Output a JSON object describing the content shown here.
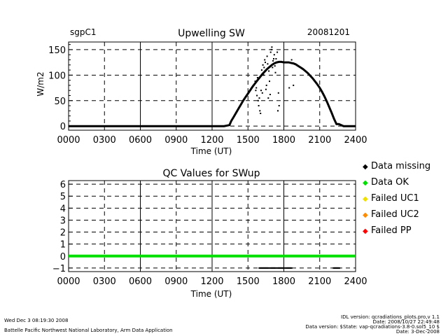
{
  "chart_data": [
    {
      "type": "scatter",
      "title": "Upwelling SW",
      "site_label": "sgpC1",
      "date_label": "20081201",
      "xlabel": "Time (UT)",
      "ylabel": "W/m2",
      "xlim": [
        0,
        2400
      ],
      "ylim": [
        -8,
        165
      ],
      "x_ticks": [
        "0000",
        "0300",
        "0600",
        "0900",
        "1200",
        "1500",
        "1800",
        "2100",
        "2400"
      ],
      "y_ticks": [
        "0",
        "50",
        "100",
        "150"
      ],
      "grid": true,
      "series": [
        {
          "x": [
            0,
            200,
            400,
            600,
            800,
            1000,
            1200,
            1300,
            1345,
            1360,
            1380,
            1400,
            1420,
            1440,
            1460,
            1480,
            1500,
            1520,
            1540,
            1560,
            1580,
            1600,
            1620,
            1640,
            1660,
            1680,
            1700,
            1720,
            1740,
            1760,
            1780,
            1800,
            1820,
            1840,
            1860,
            1880,
            1900,
            1920,
            1940,
            1960,
            1980,
            2000,
            2020,
            2040,
            2060,
            2080,
            2100,
            2120,
            2140,
            2160,
            2180,
            2200,
            2220,
            2240,
            2260,
            2280,
            2300,
            2320,
            2340,
            2360,
            2380,
            2400
          ],
          "y": [
            0,
            0,
            0,
            0,
            0,
            0,
            0,
            0,
            2,
            10,
            18,
            26,
            34,
            42,
            50,
            57,
            64,
            71,
            78,
            84,
            90,
            96,
            102,
            107,
            112,
            116,
            120,
            123,
            125,
            126,
            126,
            125,
            125,
            125,
            124,
            123,
            121,
            118,
            115,
            112,
            108,
            104,
            99,
            94,
            88,
            82,
            75,
            67,
            58,
            48,
            37,
            26,
            14,
            4,
            4,
            2,
            0,
            0,
            0,
            0,
            0,
            0
          ]
        },
        {
          "name": "scatter",
          "x": [
            1560,
            1565,
            1570,
            1575,
            1580,
            1585,
            1590,
            1595,
            1600,
            1605,
            1610,
            1615,
            1620,
            1625,
            1630,
            1635,
            1640,
            1645,
            1650,
            1655,
            1660,
            1665,
            1670,
            1675,
            1680,
            1685,
            1690,
            1695,
            1700,
            1705,
            1710,
            1715,
            1720,
            1725,
            1730,
            1735,
            1740,
            1745,
            1750,
            1755,
            1760,
            1845,
            1865,
            1880
          ],
          "y": [
            88,
            70,
            75,
            60,
            95,
            50,
            40,
            55,
            30,
            25,
            70,
            110,
            65,
            120,
            100,
            115,
            130,
            125,
            72,
            80,
            137,
            122,
            55,
            108,
            88,
            62,
            145,
            150,
            155,
            115,
            128,
            132,
            140,
            118,
            105,
            132,
            125,
            145,
            30,
            65,
            40,
            75,
            130,
            80
          ]
        }
      ]
    },
    {
      "type": "line",
      "title": "QC Values for SWup",
      "xlabel": "Time (UT)",
      "xlim": [
        0,
        2400
      ],
      "ylim": [
        -1.3,
        6.3
      ],
      "x_ticks": [
        "0000",
        "0300",
        "0600",
        "0900",
        "1200",
        "1500",
        "1800",
        "2100",
        "2400"
      ],
      "y_ticks": [
        "−1",
        "0",
        "1",
        "2",
        "3",
        "4",
        "5",
        "6"
      ],
      "grid": true,
      "series": [
        {
          "name": "Data OK",
          "x": [
            0,
            2400
          ],
          "y": [
            0,
            0
          ]
        }
      ],
      "missing_x": [
        1600,
        1610,
        1620,
        1630,
        1640,
        1650,
        1660,
        1670,
        1690,
        1700,
        1710,
        1720,
        1730,
        1750,
        1760,
        1770,
        1780,
        1790,
        1800,
        1820,
        1830,
        1840,
        1850,
        1860,
        2220,
        2230,
        2240,
        2250,
        2260
      ]
    }
  ],
  "legend": [
    {
      "label": "Data missing",
      "color": "#000000",
      "symbol": "◆"
    },
    {
      "label": "Data OK",
      "color": "#00e000",
      "symbol": "◆"
    },
    {
      "label": "Failed UC1",
      "color": "#f0e000",
      "symbol": "◆"
    },
    {
      "label": "Failed UC2",
      "color": "#ff8c00",
      "symbol": "◆"
    },
    {
      "label": "Failed PP",
      "color": "#ff0000",
      "symbol": "◆"
    }
  ],
  "footer": {
    "timestamp": "Wed Dec  3 08:19:30 2008",
    "lab": "Battelle Pacific Northwest National Laboratory, Arm Data Application",
    "idl": "IDL version: qcradiations_plots.pro,v 1.1",
    "date1": "Date: 2008/10/27 22:49:48",
    "data_version": "Data version: $State: vap-qcradiations-3.8-0.sol5_10 $",
    "date2": "Date: 3-Dec-2008"
  }
}
